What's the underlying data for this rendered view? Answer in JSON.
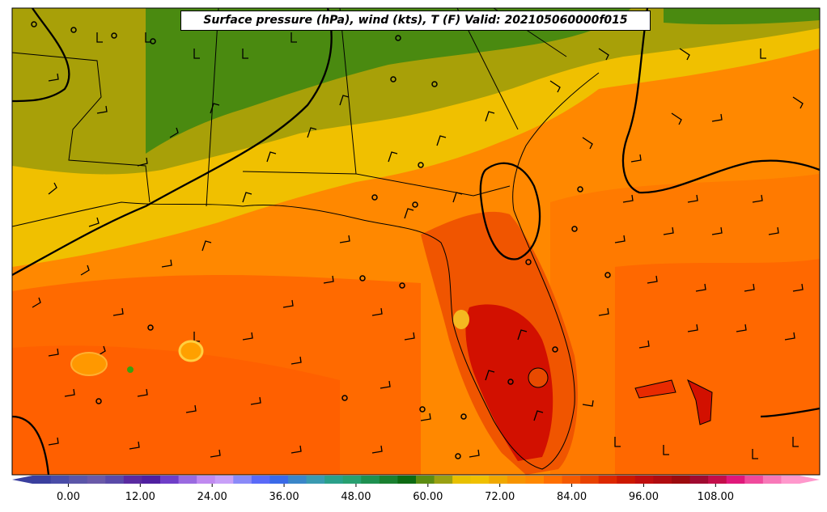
{
  "title": "Surface pressure (hPa), wind (kts), T (F) Valid: 202105060000f015",
  "colorbar": {
    "tick_labels": [
      "0.00",
      "12.00",
      "24.00",
      "36.00",
      "48.00",
      "60.00",
      "72.00",
      "84.00",
      "96.00",
      "108.00"
    ],
    "tick_values": [
      0,
      12,
      24,
      36,
      48,
      60,
      72,
      84,
      96,
      108
    ],
    "range": [
      -6,
      122
    ],
    "step": 3,
    "units": "F",
    "colors": [
      "#3a3f9e",
      "#4a4da8",
      "#5b56a8",
      "#6a5aa8",
      "#5a4aa8",
      "#5a2aa0",
      "#5020a0",
      "#6f3ec8",
      "#9a6ae0",
      "#c08af0",
      "#c8a0f8",
      "#8a8af8",
      "#5a6af8",
      "#3a6ae8",
      "#3a86c8",
      "#3a9ab0",
      "#2aa08a",
      "#28a070",
      "#1e9050",
      "#1a8030",
      "#0e6a12",
      "#5c8c12",
      "#9aa012",
      "#e8c000",
      "#f0c000",
      "#f0a800",
      "#f79400",
      "#ff8800",
      "#ff6f00",
      "#f45a00",
      "#e84200",
      "#dc2800",
      "#cc1800",
      "#c00e0e",
      "#b00c10",
      "#9c0b0e",
      "#a00b30",
      "#c40e4a",
      "#e0187a",
      "#f04a9c",
      "#f878b8",
      "#ff98cc"
    ]
  },
  "map": {
    "fill_colors": {
      "ocean_south": "#ff6a00",
      "ocean_mid": "#ff7a00",
      "gulf_coast": "#ff9400",
      "deep_south": "#f0b800",
      "inland": "#a8a008",
      "north": "#4a8a10",
      "florida_hot": "#e84a00",
      "florida_core": "#d21000",
      "ocean_east": "#ff8800"
    }
  }
}
